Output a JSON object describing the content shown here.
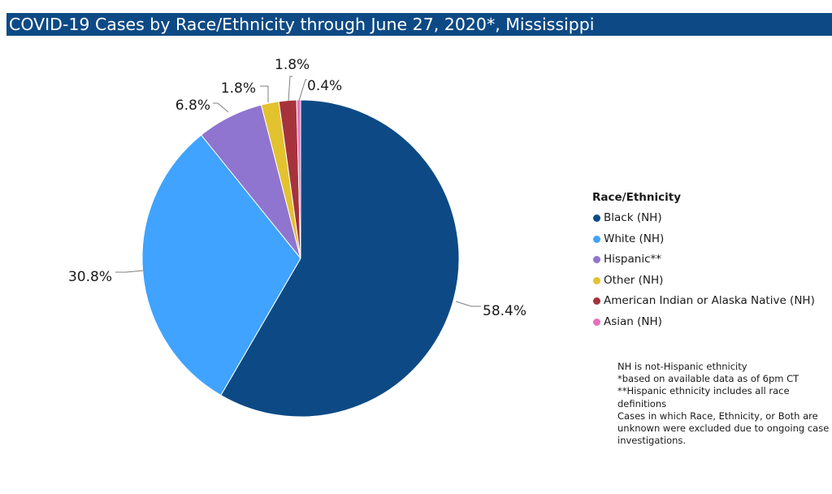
{
  "title": "COVID-19 Cases by Race/Ethnicity through June 27, 2020*, Mississippi",
  "legend": {
    "title": "Race/Ethnicity",
    "placement": "right"
  },
  "notes": [
    "NH is not-Hispanic ethnicity",
    "*based on available data as of 6pm CT",
    "**Hispanic ethnicity includes all race definitions",
    "Cases in which Race, Ethnicity, or Both are unknown were excluded due to ongoing case investigations."
  ],
  "chart_data": {
    "type": "pie",
    "title": "COVID-19 Cases by Race/Ethnicity through June 27, 2020*, Mississippi",
    "legend_title": "Race/Ethnicity",
    "slices": [
      {
        "label": "Black (NH)",
        "value": 58.4,
        "display": "58.4%",
        "color": "#0d4a85"
      },
      {
        "label": "White (NH)",
        "value": 30.8,
        "display": "30.8%",
        "color": "#3fa3ff"
      },
      {
        "label": "Hispanic**",
        "value": 6.8,
        "display": "6.8%",
        "color": "#8f75d0"
      },
      {
        "label": "Other (NH)",
        "value": 1.8,
        "display": "1.8%",
        "color": "#e3c22f"
      },
      {
        "label": "American Indian or Alaska Native (NH)",
        "value": 1.8,
        "display": "1.8%",
        "color": "#a6333c"
      },
      {
        "label": "Asian (NH)",
        "value": 0.4,
        "display": "0.4%",
        "color": "#e86fbf"
      }
    ],
    "start_angle": "12 o'clock",
    "direction": "clockwise"
  }
}
